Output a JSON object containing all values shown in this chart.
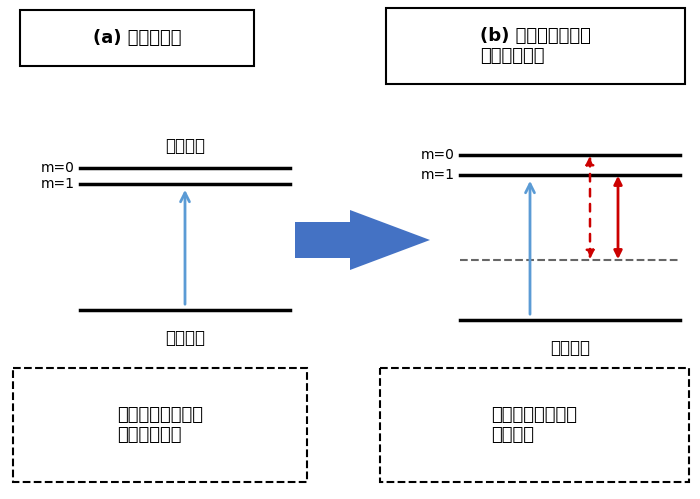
{
  "bg_color": "#ffffff",
  "title_a": "(a) 極端紫外光",
  "title_b": "(b) 高強度の赤外光\nを共鳴させる",
  "label_excited_a": "励起状態",
  "label_ground_a": "基底状態",
  "label_ground_b": "基底状態",
  "label_m0": "m=0",
  "label_m1": "m=1",
  "note_a": "エネルギー準位が\n重なっている",
  "note_b": "エネルギー準位が\n分裂する",
  "arrow_color_blue": "#5b9bd5",
  "arrow_color_red": "#cc0000",
  "line_color": "#000000",
  "dashed_color": "#666666",
  "big_arrow_color": "#4472c4"
}
